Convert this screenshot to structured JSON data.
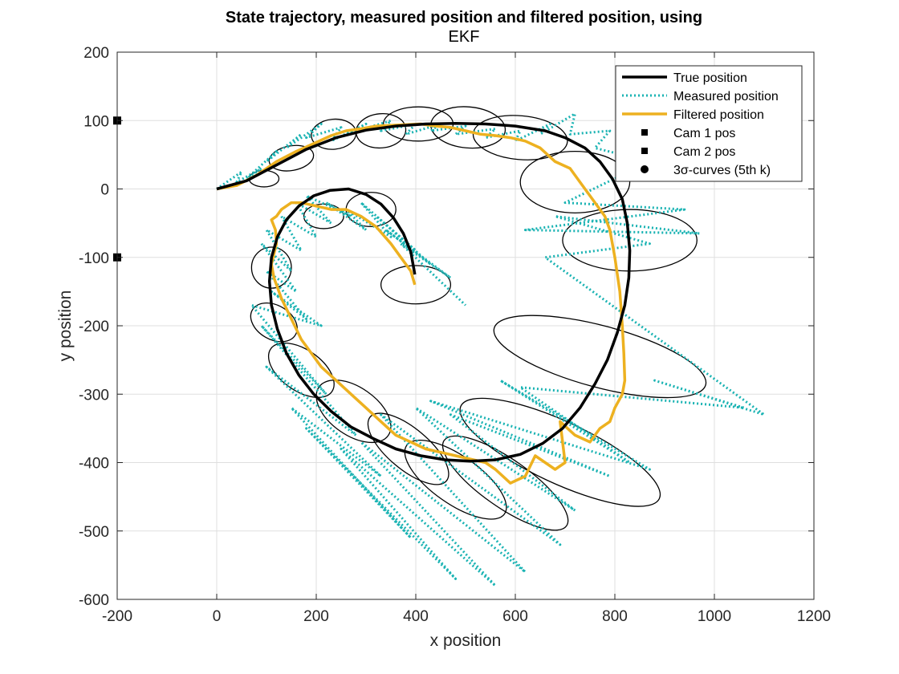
{
  "chart_data": {
    "type": "line",
    "title": "State trajectory, measured position and filtered position, using",
    "subtitle": "EKF",
    "xlabel": "x position",
    "ylabel": "y position",
    "xlim": [
      -200,
      1200
    ],
    "ylim": [
      -600,
      200
    ],
    "xticks": [
      -200,
      0,
      200,
      400,
      600,
      800,
      1000,
      1200
    ],
    "yticks": [
      -600,
      -500,
      -400,
      -300,
      -200,
      -100,
      0,
      100,
      200
    ],
    "xtick_labels": [
      "-200",
      "0",
      "200",
      "400",
      "600",
      "800",
      "1000",
      "1200"
    ],
    "ytick_labels": [
      "-600",
      "-500",
      "-400",
      "-300",
      "-200",
      "-100",
      "0",
      "100",
      "200"
    ],
    "grid": true,
    "legend_position": "top-right",
    "legend": [
      {
        "label": "True position",
        "style": "line",
        "color": "#000000"
      },
      {
        "label": "Measured position",
        "style": "dotted",
        "color": "#1ab3b3"
      },
      {
        "label": "Filtered position",
        "style": "line",
        "color": "#edb120"
      },
      {
        "label": "Cam 1 pos",
        "style": "square",
        "color": "#000000"
      },
      {
        "label": "Cam 2 pos",
        "style": "square",
        "color": "#000000"
      },
      {
        "label": "3σ-curves (5th k)",
        "style": "circle",
        "color": "#000000"
      }
    ],
    "series": [
      {
        "name": "True position",
        "color": "#000000",
        "x": [
          0,
          60,
          120,
          180,
          240,
          300,
          360,
          420,
          480,
          540,
          600,
          660,
          700,
          740,
          770,
          795,
          815,
          825,
          830,
          828,
          820,
          805,
          785,
          760,
          730,
          695,
          655,
          610,
          560,
          510,
          460,
          410,
          360,
          315,
          270,
          230,
          195,
          165,
          140,
          122,
          110,
          106,
          110,
          122,
          140,
          165,
          195,
          228,
          265,
          300,
          330,
          355,
          375,
          390,
          398
        ],
        "y": [
          0,
          12,
          35,
          58,
          75,
          86,
          92,
          95,
          96,
          95,
          92,
          85,
          75,
          60,
          40,
          15,
          -15,
          -50,
          -90,
          -130,
          -170,
          -210,
          -250,
          -285,
          -320,
          -350,
          -372,
          -388,
          -396,
          -398,
          -396,
          -390,
          -380,
          -365,
          -348,
          -325,
          -300,
          -272,
          -240,
          -205,
          -170,
          -135,
          -100,
          -70,
          -45,
          -25,
          -10,
          -2,
          0,
          -8,
          -22,
          -42,
          -65,
          -92,
          -125
        ]
      },
      {
        "name": "Measured position",
        "color": "#1ab3b3",
        "x": [
          0,
          50,
          40,
          90,
          60,
          120,
          100,
          170,
          140,
          210,
          180,
          250,
          230,
          300,
          260,
          350,
          330,
          400,
          380,
          450,
          430,
          500,
          480,
          560,
          540,
          610,
          600,
          670,
          650,
          720,
          710,
          790,
          760,
          870,
          700,
          940,
          620,
          970,
          680,
          870,
          660,
          1100,
          880,
          1060,
          610,
          830,
          570,
          870,
          430,
          790,
          470,
          720,
          400,
          690,
          330,
          620,
          290,
          560,
          250,
          480,
          180,
          390,
          150,
          330,
          100,
          280,
          90,
          220,
          70,
          210,
          110,
          180,
          100,
          160,
          90,
          150,
          100,
          170,
          130,
          200,
          160,
          230,
          180,
          270,
          220,
          300,
          260,
          350,
          290,
          400,
          320,
          430,
          340,
          470,
          370,
          500
        ],
        "y": [
          0,
          25,
          10,
          30,
          15,
          55,
          40,
          80,
          60,
          95,
          75,
          90,
          70,
          95,
          80,
          100,
          85,
          95,
          80,
          95,
          85,
          92,
          80,
          88,
          75,
          85,
          70,
          95,
          80,
          110,
          80,
          85,
          60,
          40,
          -20,
          -30,
          -60,
          -65,
          -40,
          -80,
          -100,
          -330,
          -280,
          -320,
          -290,
          -400,
          -280,
          -410,
          -310,
          -420,
          -330,
          -470,
          -320,
          -520,
          -330,
          -560,
          -370,
          -580,
          -380,
          -570,
          -350,
          -510,
          -320,
          -420,
          -260,
          -360,
          -200,
          -300,
          -170,
          -200,
          -150,
          -190,
          -120,
          -150,
          -80,
          -120,
          -60,
          -90,
          -40,
          -70,
          -20,
          -50,
          -10,
          -40,
          -20,
          -60,
          -30,
          -70,
          -20,
          -90,
          -40,
          -110,
          -60,
          -130,
          -80,
          -170
        ]
      },
      {
        "name": "Filtered position",
        "color": "#edb120",
        "x": [
          0,
          40,
          80,
          120,
          160,
          200,
          230,
          260,
          290,
          320,
          350,
          380,
          410,
          440,
          470,
          500,
          530,
          560,
          590,
          620,
          650,
          680,
          710,
          730,
          750,
          780,
          790,
          800,
          810,
          815,
          818,
          820,
          815,
          800,
          790,
          770,
          750,
          720,
          690,
          700,
          680,
          640,
          620,
          590,
          560,
          540,
          510,
          480,
          450,
          420,
          390,
          360,
          330,
          300,
          270,
          240,
          210,
          190,
          170,
          150,
          130,
          115,
          110,
          120,
          118,
          110,
          120,
          125,
          130,
          140,
          150,
          170,
          200,
          230,
          260,
          290,
          320,
          350,
          370,
          390,
          398
        ],
        "y": [
          0,
          5,
          20,
          40,
          55,
          68,
          78,
          85,
          88,
          92,
          93,
          94,
          95,
          92,
          90,
          85,
          80,
          78,
          75,
          70,
          60,
          40,
          30,
          10,
          -10,
          -40,
          -60,
          -100,
          -150,
          -200,
          -240,
          -280,
          -300,
          -320,
          -340,
          -350,
          -370,
          -360,
          -340,
          -400,
          -410,
          -390,
          -420,
          -430,
          -410,
          -400,
          -395,
          -390,
          -385,
          -380,
          -370,
          -360,
          -340,
          -320,
          -300,
          -280,
          -260,
          -240,
          -220,
          -190,
          -160,
          -130,
          -110,
          -80,
          -60,
          -45,
          -40,
          -35,
          -30,
          -25,
          -20,
          -20,
          -25,
          -30,
          -30,
          -40,
          -55,
          -80,
          -100,
          -120,
          -140
        ]
      }
    ],
    "markers": [
      {
        "name": "Cam 1 pos",
        "x": -200,
        "y": 100
      },
      {
        "name": "Cam 2 pos",
        "x": -200,
        "y": -100
      }
    ],
    "ellipses": [
      {
        "cx": 95,
        "cy": 15,
        "rx": 30,
        "ry": 12,
        "angle": 0
      },
      {
        "cx": 150,
        "cy": 45,
        "rx": 45,
        "ry": 18,
        "angle": 10
      },
      {
        "cx": 235,
        "cy": 80,
        "rx": 45,
        "ry": 22,
        "angle": 5
      },
      {
        "cx": 330,
        "cy": 85,
        "rx": 50,
        "ry": 25,
        "angle": 5
      },
      {
        "cx": 405,
        "cy": 95,
        "rx": 70,
        "ry": 25,
        "angle": 0
      },
      {
        "cx": 505,
        "cy": 90,
        "rx": 75,
        "ry": 30,
        "angle": -5
      },
      {
        "cx": 610,
        "cy": 75,
        "rx": 95,
        "ry": 32,
        "angle": -5
      },
      {
        "cx": 720,
        "cy": 10,
        "rx": 110,
        "ry": 45,
        "angle": 0
      },
      {
        "cx": 830,
        "cy": -75,
        "rx": 135,
        "ry": 45,
        "angle": 0
      },
      {
        "cx": 770,
        "cy": -245,
        "rx": 220,
        "ry": 45,
        "angle": -15
      },
      {
        "cx": 690,
        "cy": -385,
        "rx": 220,
        "ry": 45,
        "angle": -25
      },
      {
        "cx": 580,
        "cy": -430,
        "rx": 150,
        "ry": 35,
        "angle": -35
      },
      {
        "cx": 480,
        "cy": -425,
        "rx": 120,
        "ry": 35,
        "angle": -35
      },
      {
        "cx": 385,
        "cy": -380,
        "rx": 100,
        "ry": 30,
        "angle": -40
      },
      {
        "cx": 275,
        "cy": -325,
        "rx": 85,
        "ry": 35,
        "angle": -35
      },
      {
        "cx": 170,
        "cy": -265,
        "rx": 75,
        "ry": 30,
        "angle": -35
      },
      {
        "cx": 115,
        "cy": -195,
        "rx": 50,
        "ry": 25,
        "angle": -30
      },
      {
        "cx": 110,
        "cy": -115,
        "rx": 40,
        "ry": 30,
        "angle": 0
      },
      {
        "cx": 215,
        "cy": -40,
        "rx": 40,
        "ry": 18,
        "angle": 0
      },
      {
        "cx": 310,
        "cy": -30,
        "rx": 50,
        "ry": 25,
        "angle": 0
      },
      {
        "cx": 400,
        "cy": -140,
        "rx": 70,
        "ry": 28,
        "angle": 0
      }
    ]
  }
}
